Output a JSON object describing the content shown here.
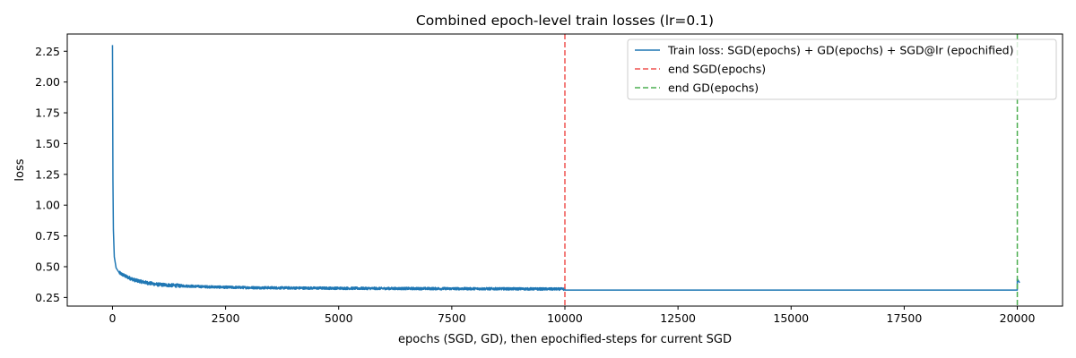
{
  "chart_data": {
    "type": "line",
    "title": "Combined epoch-level train losses (lr=0.1)",
    "xlabel": "epochs (SGD, GD), then epochified-steps for current SGD",
    "ylabel": "loss",
    "xlim": [
      -1000,
      21000
    ],
    "ylim": [
      0.18,
      2.39
    ],
    "xticks": [
      0,
      2500,
      5000,
      7500,
      10000,
      12500,
      15000,
      17500,
      20000
    ],
    "xtick_labels": [
      "0",
      "2500",
      "5000",
      "7500",
      "10000",
      "12500",
      "15000",
      "17500",
      "20000"
    ],
    "yticks": [
      0.25,
      0.5,
      0.75,
      1.0,
      1.25,
      1.5,
      1.75,
      2.0,
      2.25
    ],
    "ytick_labels": [
      "0.25",
      "0.50",
      "0.75",
      "1.00",
      "1.25",
      "1.50",
      "1.75",
      "2.00",
      "2.25"
    ],
    "grid": false,
    "legend_position": "top-right",
    "series": [
      {
        "name": "Train loss: SGD(epochs) + GD(epochs) + SGD@lr (epochified)",
        "color": "#1f77b4",
        "style": "solid",
        "points": [
          [
            0,
            2.3
          ],
          [
            10,
            1.2
          ],
          [
            20,
            0.8
          ],
          [
            40,
            0.58
          ],
          [
            80,
            0.49
          ],
          [
            150,
            0.45
          ],
          [
            300,
            0.42
          ],
          [
            500,
            0.39
          ],
          [
            750,
            0.37
          ],
          [
            1000,
            0.355
          ],
          [
            1500,
            0.345
          ],
          [
            2000,
            0.338
          ],
          [
            2500,
            0.333
          ],
          [
            3000,
            0.33
          ],
          [
            4000,
            0.327
          ],
          [
            5000,
            0.325
          ],
          [
            6000,
            0.323
          ],
          [
            7000,
            0.322
          ],
          [
            8000,
            0.321
          ],
          [
            9000,
            0.32
          ],
          [
            10000,
            0.318
          ],
          [
            10001,
            0.31
          ],
          [
            15000,
            0.31
          ],
          [
            19999,
            0.31
          ],
          [
            20000,
            0.4
          ],
          [
            20050,
            0.37
          ]
        ]
      },
      {
        "name": "end SGD(epochs)",
        "color": "#ef5350",
        "style": "dashed",
        "vline_x": 10000
      },
      {
        "name": "end GD(epochs)",
        "color": "#4caf50",
        "style": "dashed",
        "vline_x": 20000
      }
    ]
  }
}
